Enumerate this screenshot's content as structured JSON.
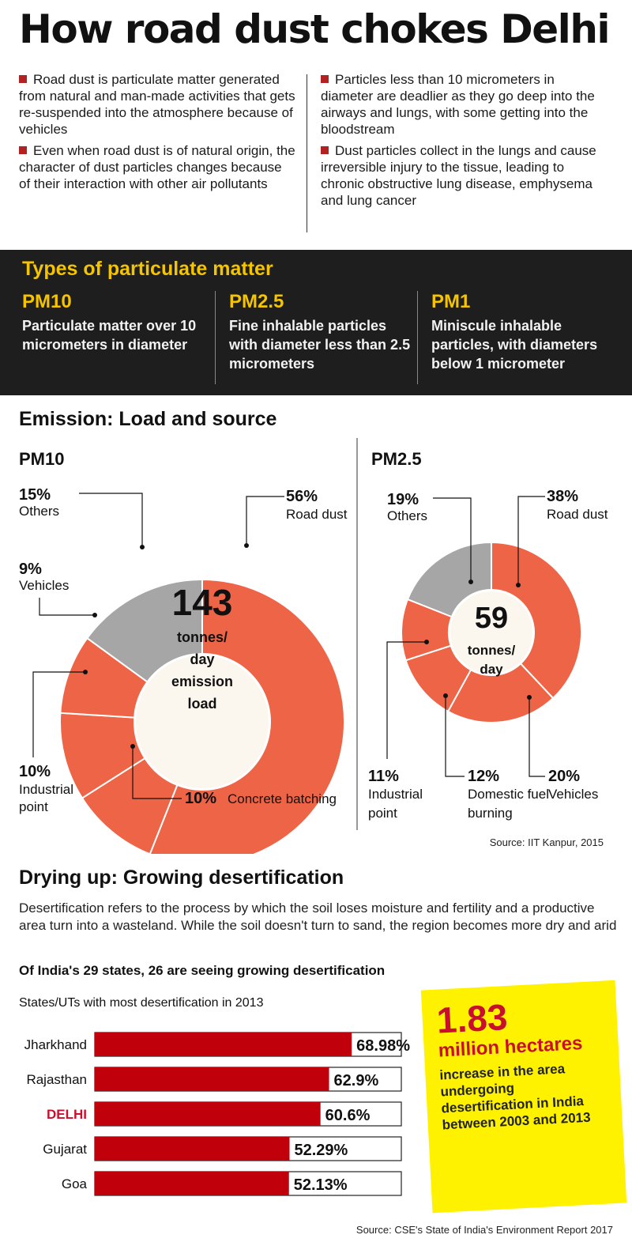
{
  "title": "How road dust chokes Delhi",
  "bullets": {
    "left": [
      "Road dust is particulate matter generated from natural and man-made activities that gets re-suspended into the atmosphere because of vehicles",
      "Even when road dust is of natural origin, the character of dust particles changes because of their interaction with other air pollutants"
    ],
    "right": [
      "Particles less than 10 micrometers in diameter are deadlier as they go deep into the airways and lungs, with some getting into the bloodstream",
      "Dust particles collect in the lungs and cause irreversible injury to the tissue, leading to chronic obstructive lung disease, emphysema and lung cancer"
    ]
  },
  "pm_types": {
    "title": "Types of particulate matter",
    "items": [
      {
        "name": "PM10",
        "desc": "Particulate matter over 10 micrometers in diameter"
      },
      {
        "name": "PM2.5",
        "desc": "Fine inhalable particles with diameter less than 2.5 micrometers"
      },
      {
        "name": "PM1",
        "desc": "Miniscule inhalable particles, with diameters below 1 micrometer"
      }
    ]
  },
  "emission": {
    "title": "Emission: Load and source",
    "source": "Source: IIT Kanpur, 2015"
  },
  "desertification": {
    "title": "Drying up: Growing desertification",
    "desc": "Desertification refers to the process by which the soil loses moisture and fertility and a productive area turn into a wasteland. While the soil doesn't turn to sand, the region becomes more dry and arid",
    "subtitle": "Of India's 29 states, 26 are seeing growing desertification",
    "chart_label": "States/UTs with most desertification in 2013",
    "callout": {
      "number": "1.83",
      "unit": "million hectares",
      "text": "increase in the area undergoing desertification in India between 2003 and 2013"
    },
    "source": "Source: CSE's State of India's Environment Report 2017"
  },
  "colors": {
    "orange": "#ee6446",
    "gray": "#a6a6a6",
    "bar_red": "#c0000b",
    "highlight": "#c8102e",
    "yellow": "#f4c400"
  },
  "chart_data": [
    {
      "type": "pie",
      "title": "PM10",
      "center_value": "143",
      "center_label": "tonnes/ day emission load",
      "slices": [
        {
          "label": "Road dust",
          "value": 56
        },
        {
          "label": "Concrete batching",
          "value": 10
        },
        {
          "label": "Industrial point",
          "value": 10
        },
        {
          "label": "Vehicles",
          "value": 9
        },
        {
          "label": "Others",
          "value": 15
        }
      ]
    },
    {
      "type": "pie",
      "title": "PM2.5",
      "center_value": "59",
      "center_label": "tonnes/ day",
      "slices": [
        {
          "label": "Road dust",
          "value": 38
        },
        {
          "label": "Vehicles",
          "value": 20
        },
        {
          "label": "Domestic fuel burning",
          "value": 12
        },
        {
          "label": "Industrial point",
          "value": 11
        },
        {
          "label": "Others",
          "value": 19
        }
      ]
    },
    {
      "type": "bar",
      "title": "States/UTs with most desertification in 2013",
      "categories": [
        "Jharkhand",
        "Rajasthan",
        "DELHI",
        "Gujarat",
        "Goa"
      ],
      "values": [
        68.98,
        62.9,
        60.6,
        52.29,
        52.13
      ],
      "value_labels": [
        "68.98%",
        "62.9%",
        "60.6%",
        "52.29%",
        "52.13%"
      ],
      "highlight": "DELHI"
    }
  ]
}
